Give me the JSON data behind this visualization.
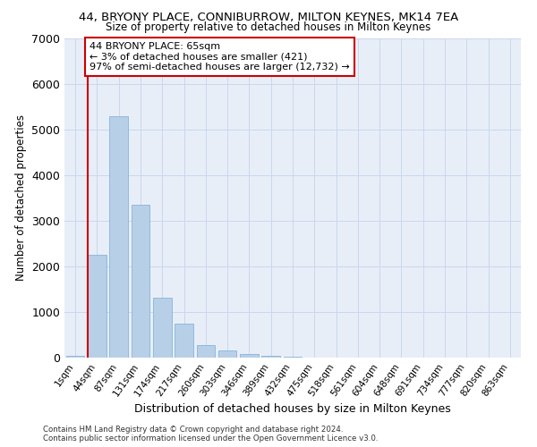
{
  "title_line1": "44, BRYONY PLACE, CONNIBURROW, MILTON KEYNES, MK14 7EA",
  "title_line2": "Size of property relative to detached houses in Milton Keynes",
  "xlabel": "Distribution of detached houses by size in Milton Keynes",
  "ylabel": "Number of detached properties",
  "categories": [
    "1sqm",
    "44sqm",
    "87sqm",
    "131sqm",
    "174sqm",
    "217sqm",
    "260sqm",
    "303sqm",
    "346sqm",
    "389sqm",
    "432sqm",
    "475sqm",
    "518sqm",
    "561sqm",
    "604sqm",
    "648sqm",
    "691sqm",
    "734sqm",
    "777sqm",
    "820sqm",
    "863sqm"
  ],
  "values": [
    30,
    2250,
    5280,
    3350,
    1320,
    740,
    280,
    165,
    85,
    40,
    15,
    0,
    0,
    0,
    0,
    0,
    0,
    0,
    0,
    0,
    0
  ],
  "bar_color": "#b8cfe8",
  "bar_edge_color": "#7aadd4",
  "grid_color": "#c8d8ec",
  "background_color": "#e8eef8",
  "vline_color": "#cc0000",
  "vline_x": 0.55,
  "annotation_text": "44 BRYONY PLACE: 65sqm\n← 3% of detached houses are smaller (421)\n97% of semi-detached houses are larger (12,732) →",
  "annotation_box_color": "#ffffff",
  "annotation_box_edge": "#cc0000",
  "ylim": [
    0,
    7000
  ],
  "yticks": [
    0,
    1000,
    2000,
    3000,
    4000,
    5000,
    6000,
    7000
  ],
  "footer_line1": "Contains HM Land Registry data © Crown copyright and database right 2024.",
  "footer_line2": "Contains public sector information licensed under the Open Government Licence v3.0."
}
